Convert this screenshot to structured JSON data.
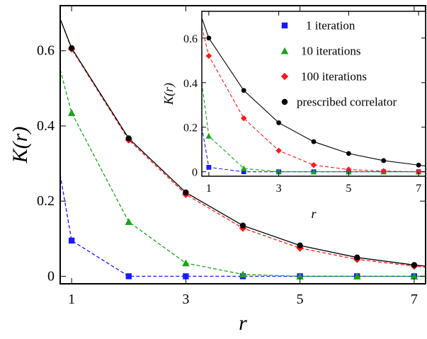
{
  "chart_data": [
    {
      "type": "line",
      "panel": "main",
      "xlabel": "r",
      "ylabel": "K(r)",
      "xlim": [
        0.8,
        7.2
      ],
      "ylim": [
        -0.02,
        0.72
      ],
      "xticks": [
        1,
        3,
        5,
        7
      ],
      "yticks": [
        0,
        0.2,
        0.4,
        0.6
      ],
      "ytick_labels": [
        "0",
        "0.2",
        "0.4",
        "0.6"
      ],
      "grid": false,
      "series": [
        {
          "key": "iter1",
          "name": "1 iteration",
          "color": "#1a1aff",
          "marker": "square",
          "line": "dashed",
          "x": [
            0.8,
            1,
            2,
            3,
            4,
            5,
            6,
            7,
            7.2
          ],
          "y": [
            0.27,
            0.095,
            0.0,
            0.0,
            0.0,
            0.0,
            0.0,
            0.0,
            0.0
          ]
        },
        {
          "key": "iter10",
          "name": "10 iterations",
          "color": "#1aa31a",
          "marker": "triangle",
          "line": "dashed",
          "x": [
            0.8,
            1,
            2,
            3,
            4,
            5,
            6,
            7,
            7.2
          ],
          "y": [
            0.55,
            0.435,
            0.145,
            0.035,
            0.005,
            0.0,
            0.0,
            0.0,
            0.0
          ]
        },
        {
          "key": "iter100",
          "name": "100 iterations",
          "color": "#ff1a1a",
          "marker": "diamond",
          "line": "dashed",
          "x": [
            0.8,
            1,
            2,
            3,
            4,
            5,
            6,
            7,
            7.2
          ],
          "y": [
            0.685,
            0.605,
            0.363,
            0.218,
            0.128,
            0.075,
            0.045,
            0.027,
            0.024
          ]
        },
        {
          "key": "prescribed",
          "name": "prescribed correlator",
          "color": "#000000",
          "marker": "circle",
          "line": "solid",
          "x": [
            0.8,
            1,
            2,
            3,
            4,
            5,
            6,
            7,
            7.2
          ],
          "y": [
            0.685,
            0.607,
            0.367,
            0.223,
            0.135,
            0.082,
            0.05,
            0.03,
            0.027
          ]
        }
      ]
    },
    {
      "type": "line",
      "panel": "inset",
      "xlabel": "r",
      "ylabel": "K(r)",
      "xlim": [
        0.8,
        7.2
      ],
      "ylim": [
        -0.02,
        0.72
      ],
      "xticks": [
        1,
        3,
        5,
        7
      ],
      "yticks": [
        0,
        0.2,
        0.4,
        0.6
      ],
      "ytick_labels": [
        "0",
        "0.2",
        "0.4",
        "0.6"
      ],
      "grid": false,
      "legend_position": "top-right",
      "series": [
        {
          "key": "iter1",
          "name": "1 iteration",
          "color": "#1a1aff",
          "marker": "square",
          "line": "dashed",
          "x": [
            0.8,
            1,
            2,
            3,
            4,
            5,
            6,
            7,
            7.2
          ],
          "y": [
            0.2,
            0.02,
            0.0,
            0.0,
            0.0,
            0.0,
            0.0,
            0.0,
            0.0
          ]
        },
        {
          "key": "iter10",
          "name": "10 iterations",
          "color": "#1aa31a",
          "marker": "triangle",
          "line": "dashed",
          "x": [
            0.8,
            1,
            2,
            3,
            4,
            5,
            6,
            7,
            7.2
          ],
          "y": [
            0.4,
            0.16,
            0.015,
            0.0,
            0.0,
            0.0,
            0.0,
            0.0,
            0.0
          ]
        },
        {
          "key": "iter100",
          "name": "100 iterations",
          "color": "#ff1a1a",
          "marker": "diamond",
          "line": "dashed",
          "x": [
            0.8,
            1,
            2,
            3,
            4,
            5,
            6,
            7,
            7.2
          ],
          "y": [
            0.65,
            0.52,
            0.24,
            0.095,
            0.03,
            0.01,
            0.003,
            0.0,
            0.0
          ]
        },
        {
          "key": "prescribed",
          "name": "prescribed correlator",
          "color": "#000000",
          "marker": "circle",
          "line": "solid",
          "x": [
            0.8,
            1,
            2,
            3,
            4,
            5,
            6,
            7,
            7.2
          ],
          "y": [
            0.69,
            0.6,
            0.365,
            0.22,
            0.135,
            0.082,
            0.05,
            0.03,
            0.026
          ]
        }
      ]
    }
  ]
}
